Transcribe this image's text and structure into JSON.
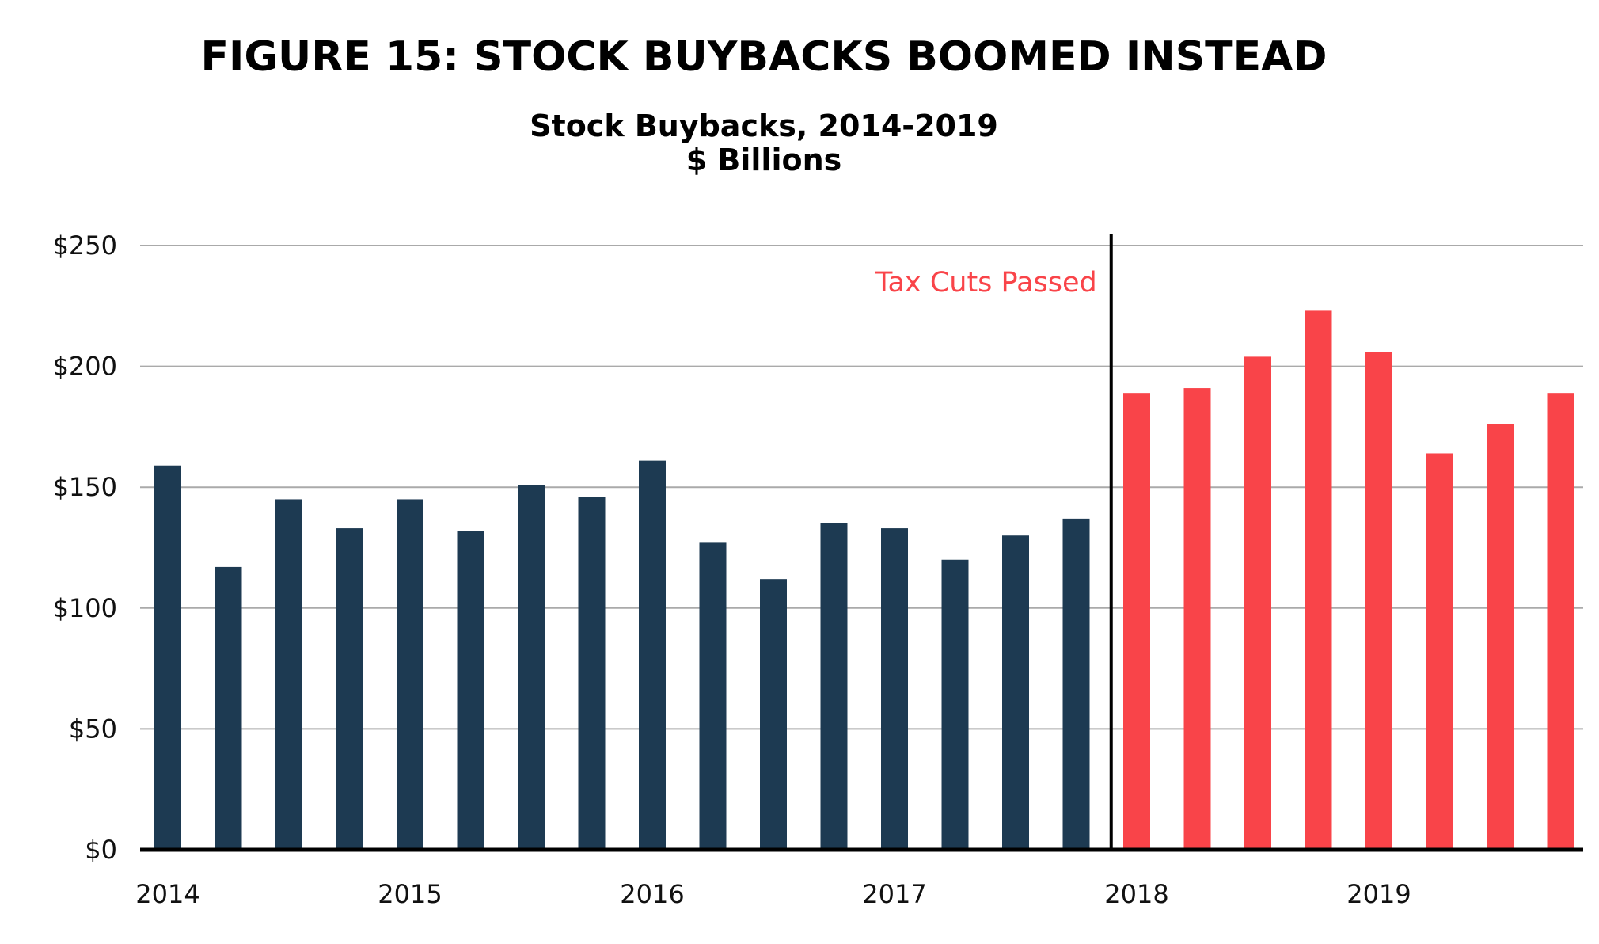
{
  "header": {
    "figure_title": "FIGURE 15: STOCK BUYBACKS BOOMED INSTEAD",
    "chart_title_line1": "Stock Buybacks, 2014-2019",
    "chart_title_line2": "$ Billions"
  },
  "colors": {
    "pre_tax_cut": "#1d3a52",
    "post_tax_cut": "#f94449",
    "gridline": "#aaaaaa",
    "axis": "#000000",
    "annotation": "#f94449"
  },
  "chart_data": {
    "type": "bar",
    "title": "Stock Buybacks, 2014-2019",
    "subtitle": "$ Billions",
    "xlabel": "",
    "ylabel": "",
    "ylim": [
      0,
      250
    ],
    "yticks": [
      0,
      50,
      100,
      150,
      200,
      250
    ],
    "ytick_labels": [
      "$0",
      "$50",
      "$100",
      "$150",
      "$200",
      "$250"
    ],
    "year_labels": [
      "2014",
      "2015",
      "2016",
      "2017",
      "2018",
      "2019"
    ],
    "grid": true,
    "categories": [
      "2014 Q1",
      "2014 Q2",
      "2014 Q3",
      "2014 Q4",
      "2015 Q1",
      "2015 Q2",
      "2015 Q3",
      "2015 Q4",
      "2016 Q1",
      "2016 Q2",
      "2016 Q3",
      "2016 Q4",
      "2017 Q1",
      "2017 Q2",
      "2017 Q3",
      "2017 Q4",
      "2018 Q1",
      "2018 Q2",
      "2018 Q3",
      "2018 Q4",
      "2019 Q1",
      "2019 Q2",
      "2019 Q3",
      "2019 Q4"
    ],
    "values": [
      159,
      117,
      145,
      133,
      145,
      132,
      151,
      146,
      161,
      127,
      112,
      135,
      133,
      120,
      130,
      137,
      189,
      191,
      204,
      223,
      206,
      164,
      176,
      189
    ],
    "highlight_from_index": 16,
    "annotation": {
      "text": "Tax Cuts Passed"
    }
  }
}
